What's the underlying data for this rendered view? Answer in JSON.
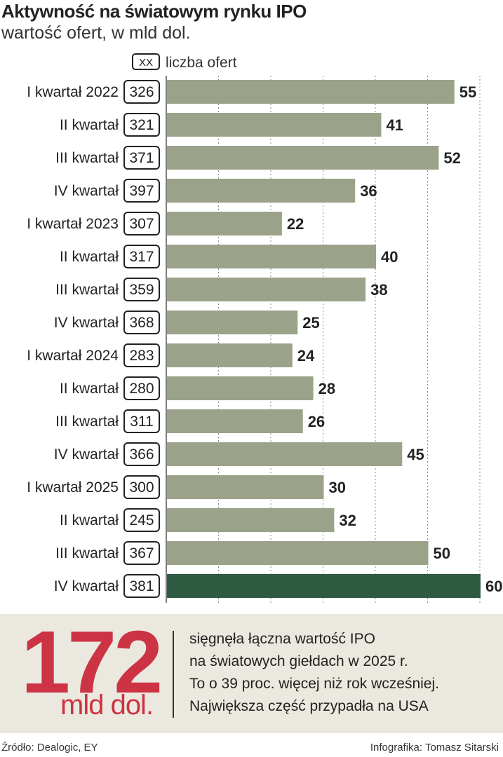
{
  "chart_data": {
    "type": "bar",
    "orientation": "horizontal",
    "title": "Aktywność na światowym rynku IPO",
    "subtitle": "wartość ofert, w mld dol.",
    "legend": {
      "box_label": "XX",
      "label": "liczba ofert"
    },
    "categories": [
      "I kwartał 2022",
      "II kwartał",
      "III kwartał",
      "IV kwartał",
      "I kwartał 2023",
      "II kwartał",
      "III kwartał",
      "IV kwartał",
      "I kwartał 2024",
      "II kwartał",
      "III kwartał",
      "IV kwartał",
      "I kwartał 2025",
      "II kwartał",
      "III kwartał",
      "IV kwartał"
    ],
    "values": [
      55,
      41,
      52,
      36,
      22,
      40,
      38,
      25,
      24,
      28,
      26,
      45,
      30,
      32,
      50,
      60
    ],
    "offer_counts": [
      326,
      321,
      371,
      397,
      307,
      317,
      359,
      368,
      283,
      280,
      311,
      366,
      300,
      245,
      367,
      381
    ],
    "xlim": [
      0,
      60
    ],
    "gridlines": [
      10,
      20,
      30,
      40,
      50,
      60
    ],
    "bar_color": "#9aa38a",
    "highlight_color": "#2f5a42",
    "highlight_index": 15
  },
  "callout": {
    "number": "172",
    "unit": "mld dol.",
    "lines": [
      "sięgnęła łączna wartość IPO",
      "na światowych giełdach w 2025 r.",
      "To o 39 proc. więcej niż rok wcześniej.",
      "Największa część przypadła na USA"
    ],
    "accent_color": "#cc3344",
    "background_color": "#ebe9df"
  },
  "footer": {
    "source": "Źródło: Dealogic, EY",
    "credit": "Infografika: Tomasz Sitarski"
  }
}
